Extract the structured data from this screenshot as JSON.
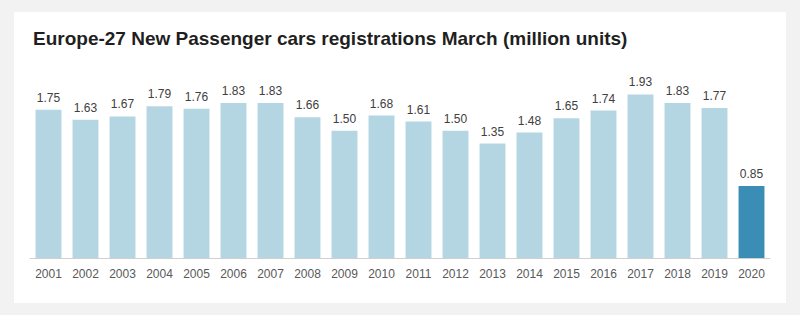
{
  "chart_data": {
    "type": "bar",
    "title": "Europe-27 New Passenger cars registrations March (million units)",
    "categories": [
      "2001",
      "2002",
      "2003",
      "2004",
      "2005",
      "2006",
      "2007",
      "2008",
      "2009",
      "2010",
      "2011",
      "2012",
      "2013",
      "2014",
      "2015",
      "2016",
      "2017",
      "2018",
      "2019",
      "2020"
    ],
    "values": [
      1.75,
      1.63,
      1.67,
      1.79,
      1.76,
      1.83,
      1.83,
      1.66,
      1.5,
      1.68,
      1.61,
      1.5,
      1.35,
      1.48,
      1.65,
      1.74,
      1.93,
      1.83,
      1.77,
      0.85
    ],
    "value_labels": [
      "1.75",
      "1.63",
      "1.67",
      "1.79",
      "1.76",
      "1.83",
      "1.83",
      "1.66",
      "1.50",
      "1.68",
      "1.61",
      "1.50",
      "1.35",
      "1.48",
      "1.65",
      "1.74",
      "1.93",
      "1.83",
      "1.77",
      "0.85"
    ],
    "colors": [
      "#b4d6e3",
      "#b4d6e3",
      "#b4d6e3",
      "#b4d6e3",
      "#b4d6e3",
      "#b4d6e3",
      "#b4d6e3",
      "#b4d6e3",
      "#b4d6e3",
      "#b4d6e3",
      "#b4d6e3",
      "#b4d6e3",
      "#b4d6e3",
      "#b4d6e3",
      "#b4d6e3",
      "#b4d6e3",
      "#b4d6e3",
      "#b4d6e3",
      "#b4d6e3",
      "#3a8db5"
    ],
    "ylim": [
      0,
      2.1
    ],
    "grid": false,
    "data_labels": true,
    "tick_labels": "x"
  }
}
